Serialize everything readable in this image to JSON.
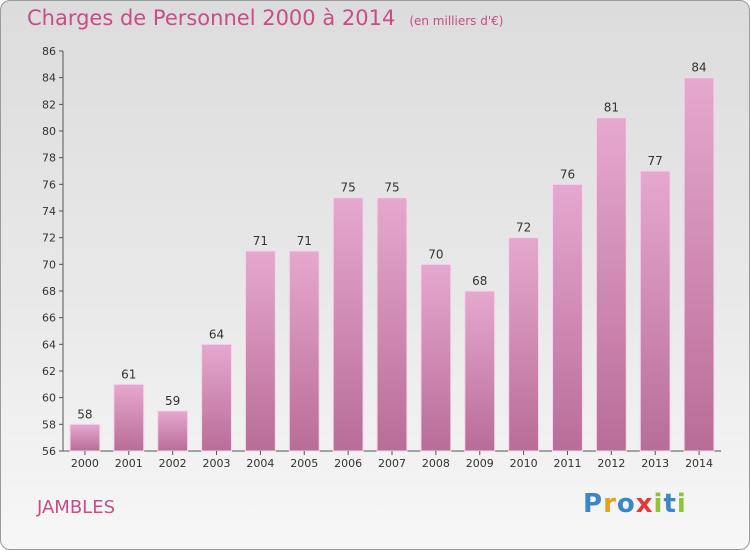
{
  "title": "Charges de Personnel 2000 à 2014",
  "unit": "(en milliers d'€)",
  "commune": "JAMBLES",
  "logo": {
    "letters": [
      "P",
      "r",
      "o",
      "x",
      "i",
      "t",
      "i"
    ],
    "colors": [
      "#3a86c8",
      "#e8a020",
      "#3a86c8",
      "#e23a3a",
      "#8cc43c",
      "#3a86c8",
      "#8cc43c"
    ]
  },
  "colors": {
    "bar_top": "#e6a8cf",
    "bar_bottom": "#b86d98",
    "accent": "#c84c88",
    "axis": "#555555"
  },
  "chart_data": {
    "type": "bar",
    "title": "Charges de Personnel 2000 à 2014",
    "subtitle": "(en milliers d'€)",
    "categories": [
      "2000",
      "2001",
      "2002",
      "2003",
      "2004",
      "2005",
      "2006",
      "2007",
      "2008",
      "2009",
      "2010",
      "2011",
      "2012",
      "2013",
      "2014"
    ],
    "values": [
      58,
      61,
      59,
      64,
      71,
      71,
      75,
      75,
      70,
      68,
      72,
      76,
      81,
      77,
      84
    ],
    "ylim": [
      56,
      86
    ],
    "yticks": [
      56,
      58,
      60,
      62,
      64,
      66,
      68,
      70,
      72,
      74,
      76,
      78,
      80,
      82,
      84,
      86
    ],
    "grid": false
  }
}
